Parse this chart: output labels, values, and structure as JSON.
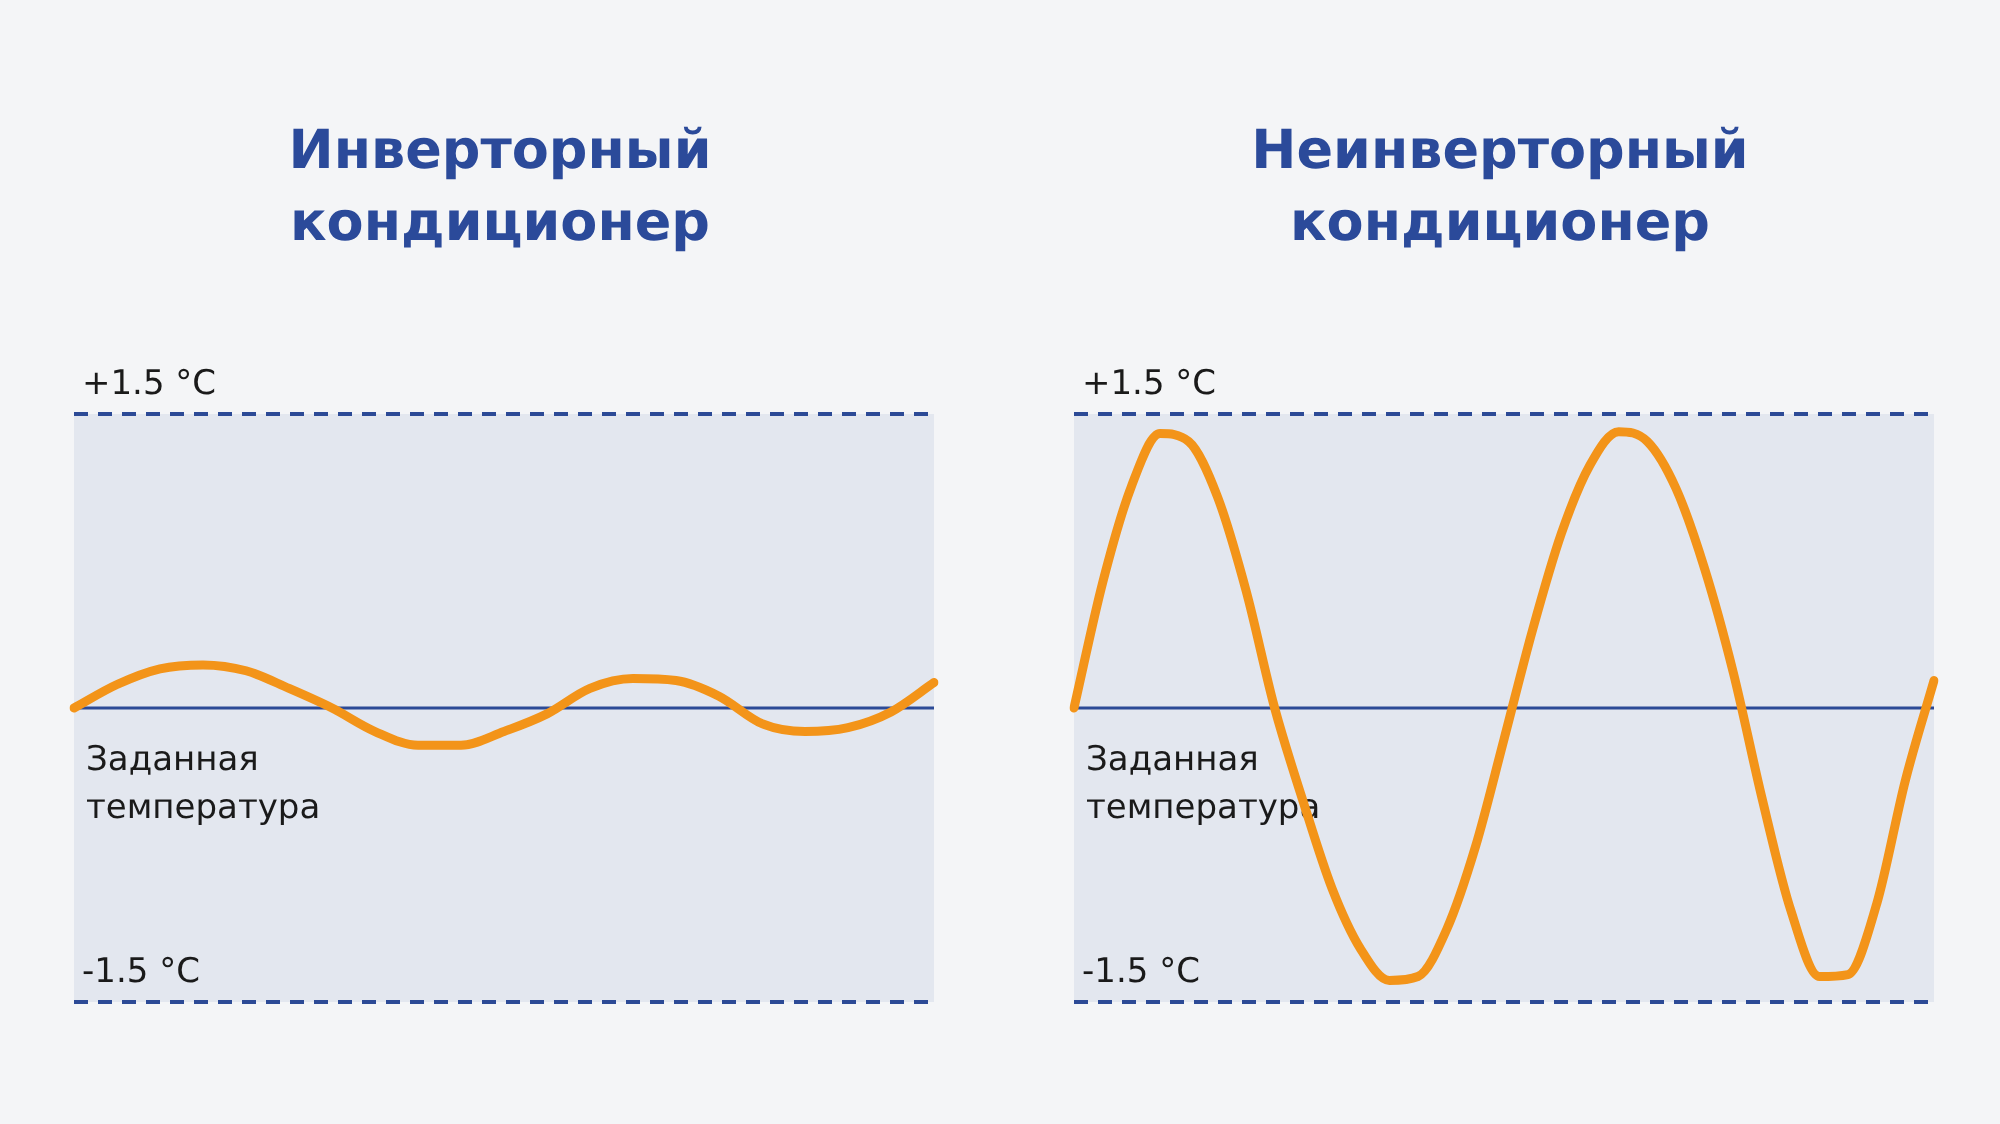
{
  "chart_data": [
    {
      "type": "line",
      "title": "Инверторный кондиционер",
      "categories": [
        null,
        null,
        null,
        null,
        null,
        null,
        null,
        null,
        null,
        null,
        null,
        null,
        null,
        null,
        null,
        null,
        null,
        null,
        null,
        null,
        null
      ],
      "series": [
        {
          "color": "#f39419",
          "values": [
            0,
            0.12,
            0.2,
            0.22,
            0.19,
            0.1,
            0.0,
            -0.12,
            -0.19,
            -0.19,
            -0.12,
            -0.03,
            0.1,
            0.15,
            0.14,
            0.06,
            -0.08,
            -0.12,
            -0.1,
            -0.02,
            0.13
          ]
        }
      ],
      "ylim": [
        -1.5,
        1.5
      ],
      "tick_labels": false,
      "legend": false,
      "marker": "none",
      "line_style": "solid",
      "bands": [
        {
          "axis": "y",
          "from": -1.5,
          "to": 1.5,
          "color": "#e3e7ef"
        }
      ],
      "ref_lines": [
        {
          "axis": "y",
          "value": 1.5,
          "label": "+1.5 °C",
          "color": "#2c4a96",
          "line_style": "dashed"
        },
        {
          "axis": "y",
          "value": 0,
          "label": "Заданная температура",
          "color": "#2c4a96",
          "line_style": "solid"
        },
        {
          "axis": "y",
          "value": -1.5,
          "label": "-1.5 °C",
          "color": "#2c4a96",
          "line_style": "dashed"
        }
      ]
    },
    {
      "type": "line",
      "title": "Неинверторный кондиционер",
      "categories": [
        null,
        null,
        null,
        null,
        null,
        null,
        null,
        null,
        null,
        null,
        null,
        null,
        null,
        null,
        null,
        null,
        null,
        null,
        null,
        null,
        null,
        null,
        null,
        null,
        null,
        null,
        null,
        null,
        null,
        null,
        null
      ],
      "series": [
        {
          "color": "#f39419",
          "values": [
            0,
            0.64,
            1.13,
            1.4,
            1.36,
            1.08,
            0.6,
            0,
            -0.48,
            -0.92,
            -1.23,
            -1.39,
            -1.37,
            -1.13,
            -0.71,
            -0.16,
            0.4,
            0.89,
            1.24,
            1.41,
            1.36,
            1.12,
            0.71,
            0.18,
            -0.46,
            -1.03,
            -1.37,
            -1.36,
            -1.0,
            -0.37,
            0.14
          ]
        }
      ],
      "ylim": [
        -1.5,
        1.5
      ],
      "tick_labels": false,
      "legend": false,
      "marker": "none",
      "line_style": "solid",
      "bands": [
        {
          "axis": "y",
          "from": -1.5,
          "to": 1.5,
          "color": "#e3e7ef"
        }
      ],
      "ref_lines": [
        {
          "axis": "y",
          "value": 1.5,
          "label": "+1.5 °C",
          "color": "#2c4a96",
          "line_style": "dashed"
        },
        {
          "axis": "y",
          "value": 0,
          "label": "Заданная температура",
          "color": "#2c4a96",
          "line_style": "solid"
        },
        {
          "axis": "y",
          "value": -1.5,
          "label": "-1.5 °C",
          "color": "#2c4a96",
          "line_style": "dashed"
        }
      ]
    }
  ]
}
